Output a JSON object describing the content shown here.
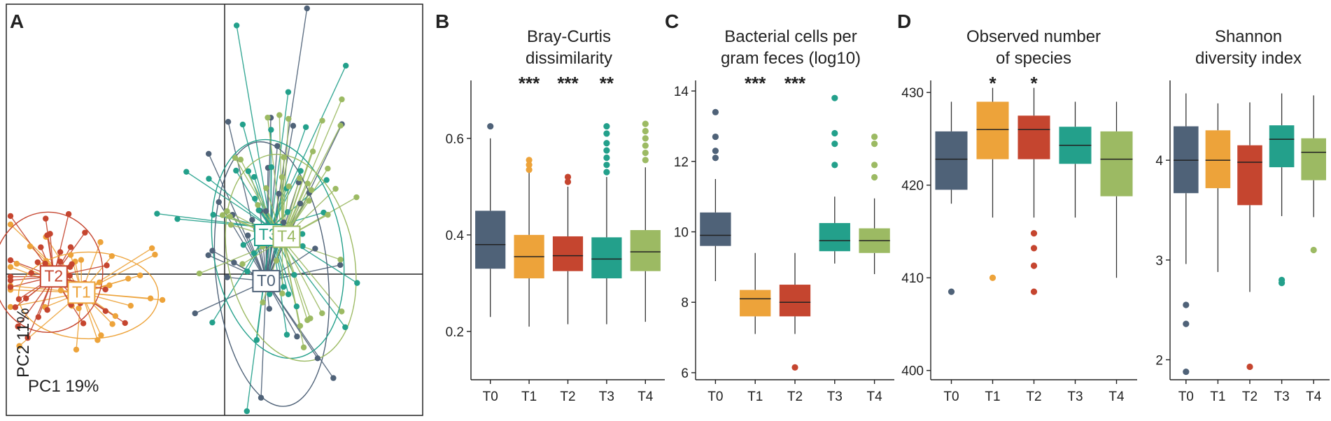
{
  "colors": {
    "T0": "#4f6278",
    "T1": "#eda33a",
    "T2": "#c5452f",
    "T3": "#23a08b",
    "T4": "#9cba63"
  },
  "chart_data": [
    {
      "panel": "A",
      "type": "scatter",
      "title": "",
      "xlabel": "PC1 19%",
      "ylabel": "PC2 11%",
      "groups": [
        {
          "name": "T0",
          "centroid": [
            0.18,
            -0.03
          ]
        },
        {
          "name": "T1",
          "centroid": [
            -0.62,
            -0.08
          ]
        },
        {
          "name": "T2",
          "centroid": [
            -0.74,
            -0.01
          ]
        },
        {
          "name": "T3",
          "centroid": [
            0.2,
            0.2
          ]
        },
        {
          "name": "T4",
          "centroid": [
            0.25,
            0.15
          ]
        }
      ]
    },
    {
      "panel": "B",
      "type": "box",
      "title": [
        "Bray-Curtis",
        "dissimilarity"
      ],
      "categories": [
        "T0",
        "T1",
        "T2",
        "T3",
        "T4"
      ],
      "ylim": [
        0.1,
        0.72
      ],
      "yticks": [
        0.2,
        0.4,
        0.6
      ],
      "ytick_labels": [
        "0.2",
        "0.4",
        "0.6"
      ],
      "significance": [
        "",
        "***",
        "***",
        "**",
        ""
      ],
      "boxes": [
        {
          "q1": 0.33,
          "median": 0.38,
          "q3": 0.45,
          "lo": 0.23,
          "hi": 0.6,
          "outliers": [
            0.625
          ]
        },
        {
          "q1": 0.31,
          "median": 0.355,
          "q3": 0.4,
          "lo": 0.21,
          "hi": 0.53,
          "outliers": [
            0.535,
            0.545,
            0.555
          ]
        },
        {
          "q1": 0.325,
          "median": 0.357,
          "q3": 0.397,
          "lo": 0.215,
          "hi": 0.5,
          "outliers": [
            0.51,
            0.52
          ]
        },
        {
          "q1": 0.31,
          "median": 0.35,
          "q3": 0.395,
          "lo": 0.215,
          "hi": 0.52,
          "outliers": [
            0.53,
            0.545,
            0.56,
            0.575,
            0.59,
            0.61,
            0.625
          ]
        },
        {
          "q1": 0.325,
          "median": 0.365,
          "q3": 0.41,
          "lo": 0.22,
          "hi": 0.54,
          "outliers": [
            0.555,
            0.57,
            0.585,
            0.6,
            0.615,
            0.63
          ]
        }
      ]
    },
    {
      "panel": "C",
      "type": "box",
      "title": [
        "Bacterial cells per",
        "gram feces (log10)"
      ],
      "categories": [
        "T0",
        "T1",
        "T2",
        "T3",
        "T4"
      ],
      "ylim": [
        5.8,
        14.3
      ],
      "yticks": [
        6,
        8,
        10,
        12,
        14
      ],
      "ytick_labels": [
        "6",
        "8",
        "10",
        "12",
        "14"
      ],
      "significance": [
        "",
        "***",
        "***",
        "",
        ""
      ],
      "boxes": [
        {
          "q1": 9.6,
          "median": 9.9,
          "q3": 10.55,
          "lo": 8.6,
          "hi": 11.5,
          "outliers": [
            12.1,
            12.3,
            12.7,
            13.4
          ]
        },
        {
          "q1": 7.6,
          "median": 8.1,
          "q3": 8.35,
          "lo": 7.1,
          "hi": 9.4,
          "outliers": []
        },
        {
          "q1": 7.6,
          "median": 8.0,
          "q3": 8.5,
          "lo": 7.1,
          "hi": 9.4,
          "outliers": [
            6.15
          ]
        },
        {
          "q1": 9.45,
          "median": 9.75,
          "q3": 10.25,
          "lo": 9.1,
          "hi": 11.0,
          "outliers": [
            11.9,
            12.5,
            12.8,
            13.8
          ]
        },
        {
          "q1": 9.4,
          "median": 9.75,
          "q3": 10.1,
          "lo": 8.8,
          "hi": 10.95,
          "outliers": [
            11.55,
            11.9,
            12.5,
            12.7
          ]
        }
      ]
    },
    {
      "panel": "D",
      "type": "box",
      "title": [
        "Observed number",
        "of species"
      ],
      "categories": [
        "T0",
        "T1",
        "T2",
        "T3",
        "T4"
      ],
      "ylim": [
        399,
        431.3
      ],
      "yticks": [
        400,
        410,
        420,
        430
      ],
      "ytick_labels": [
        "400",
        "410",
        "420",
        "430"
      ],
      "significance": [
        "",
        "*",
        "*",
        "",
        ""
      ],
      "boxes": [
        {
          "q1": 419.5,
          "median": 422.8,
          "q3": 425.8,
          "lo": 418,
          "hi": 429,
          "outliers": [
            408.5
          ]
        },
        {
          "q1": 422.8,
          "median": 426.0,
          "q3": 429.0,
          "lo": 416.5,
          "hi": 430.5,
          "outliers": [
            410
          ]
        },
        {
          "q1": 422.8,
          "median": 426.0,
          "q3": 427.5,
          "lo": 416.5,
          "hi": 430.5,
          "outliers": [
            408.5,
            411.3,
            413.2,
            414.8
          ]
        },
        {
          "q1": 422.3,
          "median": 424.3,
          "q3": 426.3,
          "lo": 416.5,
          "hi": 429.0,
          "outliers": []
        },
        {
          "q1": 418.8,
          "median": 422.8,
          "q3": 425.8,
          "lo": 410,
          "hi": 429.0,
          "outliers": []
        }
      ]
    },
    {
      "panel": "D2",
      "type": "box",
      "title": [
        "Shannon",
        "diversity index"
      ],
      "categories": [
        "T0",
        "T1",
        "T2",
        "T3",
        "T4"
      ],
      "ylim": [
        1.8,
        4.8
      ],
      "yticks": [
        2,
        3,
        4
      ],
      "ytick_labels": [
        "2",
        "3",
        "4"
      ],
      "significance": [
        "",
        "",
        "",
        "",
        ""
      ],
      "boxes": [
        {
          "q1": 3.67,
          "median": 4.0,
          "q3": 4.34,
          "lo": 2.96,
          "hi": 4.67,
          "outliers": [
            1.88,
            2.36,
            2.55
          ]
        },
        {
          "q1": 3.72,
          "median": 4.0,
          "q3": 4.3,
          "lo": 2.88,
          "hi": 4.57,
          "outliers": []
        },
        {
          "q1": 3.55,
          "median": 3.98,
          "q3": 4.15,
          "lo": 2.68,
          "hi": 4.58,
          "outliers": [
            1.93
          ]
        },
        {
          "q1": 3.93,
          "median": 4.21,
          "q3": 4.35,
          "lo": 3.44,
          "hi": 4.67,
          "outliers": [
            2.77,
            2.8
          ]
        },
        {
          "q1": 3.8,
          "median": 4.08,
          "q3": 4.22,
          "lo": 3.43,
          "hi": 4.65,
          "outliers": [
            3.1
          ]
        }
      ]
    }
  ]
}
